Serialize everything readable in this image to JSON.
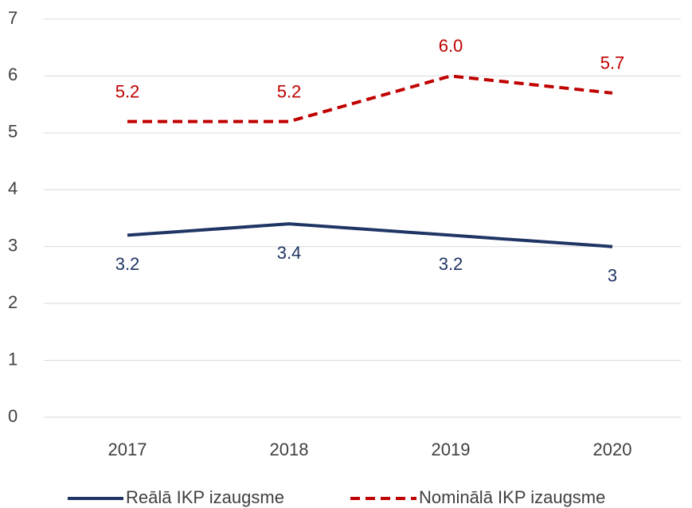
{
  "chart_data": {
    "type": "line",
    "categories": [
      "2017",
      "2018",
      "2019",
      "2020"
    ],
    "series": [
      {
        "name": "Reālā IKP izaugsme",
        "color": "#1f3564",
        "line_style": "solid",
        "values": [
          3.2,
          3.4,
          3.2,
          3
        ]
      },
      {
        "name": "Nominālā IKP izaugsme",
        "color": "#c00000",
        "line_style": "dashed",
        "values": [
          5.2,
          5.2,
          6.0,
          5.7
        ],
        "value_labels": [
          "5.2",
          "5.2",
          "6.0",
          "5.7"
        ]
      }
    ],
    "ylim": [
      0,
      7
    ],
    "yticks": [
      0,
      1,
      2,
      3,
      4,
      5,
      6,
      7
    ],
    "grid": true,
    "legend": "bottom"
  }
}
